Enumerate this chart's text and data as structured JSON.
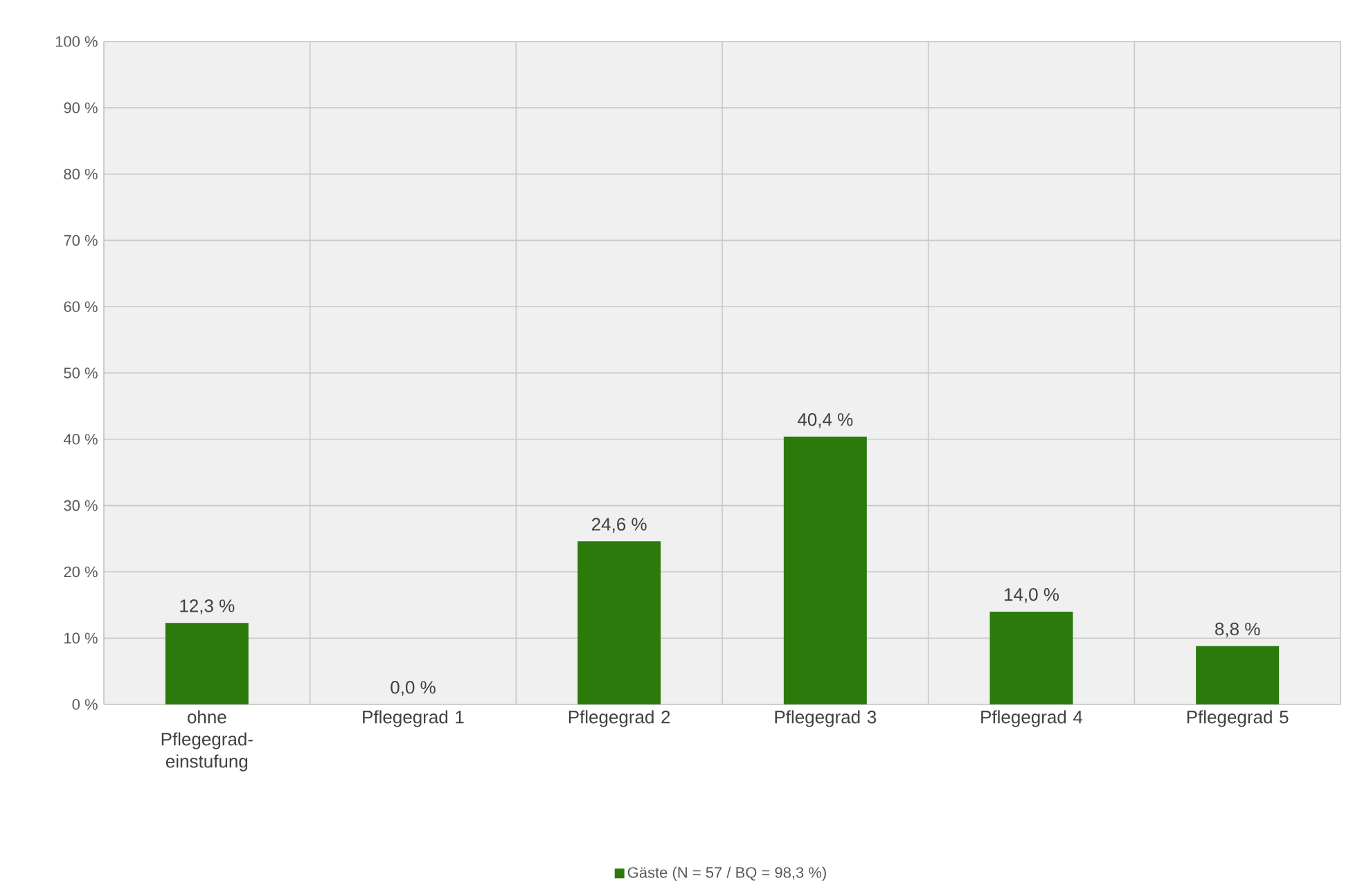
{
  "chart_data": {
    "type": "bar",
    "categories": [
      "ohne Pflegegrad-einstufung",
      "Pflegegrad 1",
      "Pflegegrad 2",
      "Pflegegrad 3",
      "Pflegegrad 4",
      "Pflegegrad 5"
    ],
    "series": [
      {
        "name": "Gäste (N = 57 / BQ = 98,3 %)",
        "color": "#2b7a0b",
        "values": [
          12.3,
          0.0,
          24.6,
          40.4,
          14.0,
          8.8
        ],
        "value_labels": [
          "12,3 %",
          "0,0 %",
          "24,6 %",
          "40,4 %",
          "14,0 %",
          "8,8 %"
        ]
      }
    ],
    "ylim": [
      0,
      100
    ],
    "yticks": [
      {
        "value": 0,
        "label": "0 %"
      },
      {
        "value": 10,
        "label": "10 %"
      },
      {
        "value": 20,
        "label": "20 %"
      },
      {
        "value": 30,
        "label": "30 %"
      },
      {
        "value": 40,
        "label": "40 %"
      },
      {
        "value": 50,
        "label": "50 %"
      },
      {
        "value": 60,
        "label": "60 %"
      },
      {
        "value": 70,
        "label": "70 %"
      },
      {
        "value": 80,
        "label": "80 %"
      },
      {
        "value": 90,
        "label": "90 %"
      },
      {
        "value": 100,
        "label": "100 %"
      }
    ],
    "grid": true,
    "legend": "bottom"
  }
}
